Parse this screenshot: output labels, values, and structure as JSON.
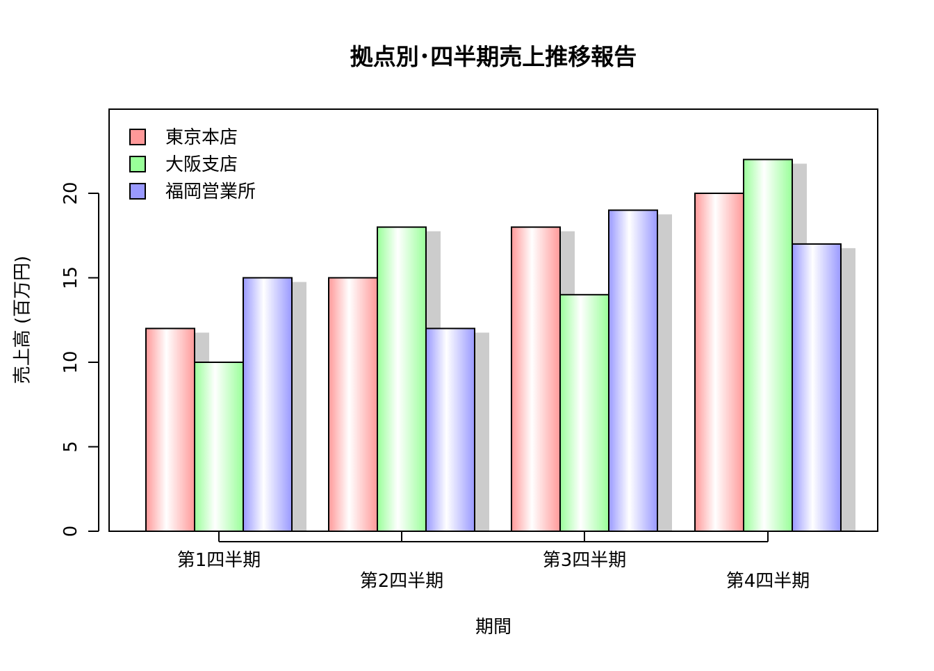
{
  "chart_data": {
    "type": "bar",
    "title": "拠点別･四半期売上推移報告",
    "xlabel": "期間",
    "ylabel": "売上高 (百万円)",
    "categories": [
      "第1四半期",
      "第2四半期",
      "第3四半期",
      "第4四半期"
    ],
    "series": [
      {
        "name": "東京本店",
        "values": [
          12,
          15,
          18,
          20
        ],
        "color": "#ff9999"
      },
      {
        "name": "大阪支店",
        "values": [
          10,
          18,
          14,
          22
        ],
        "color": "#99ff99"
      },
      {
        "name": "福岡営業所",
        "values": [
          15,
          12,
          19,
          17
        ],
        "color": "#9999ff"
      }
    ],
    "y_ticks": [
      0,
      5,
      10,
      15,
      20
    ],
    "ylim": [
      0,
      25
    ],
    "legend_position": "top-left",
    "grid": false,
    "shadow_color": "#cccccc"
  }
}
